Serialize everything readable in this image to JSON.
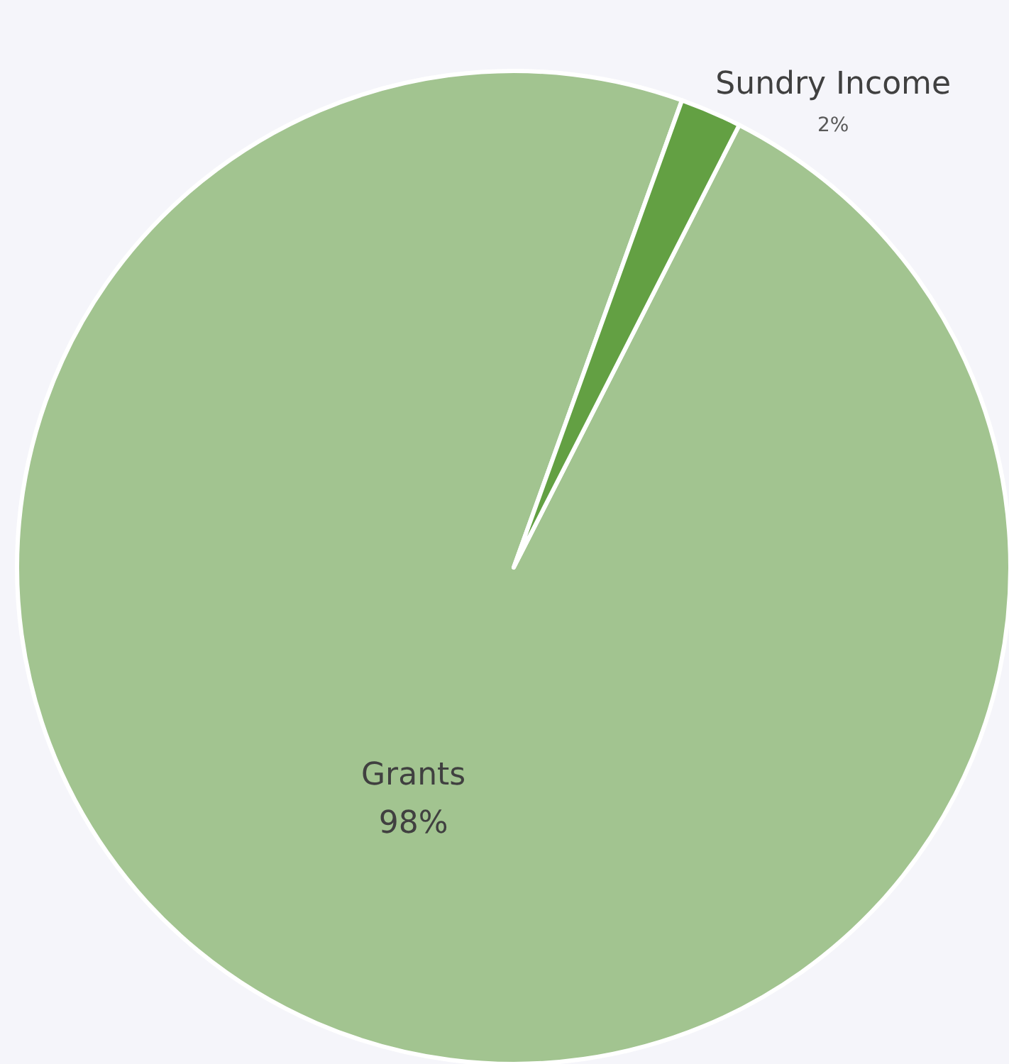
{
  "chart_data": {
    "type": "pie",
    "categories": [
      "Grants",
      "Sundry Income"
    ],
    "values": [
      98,
      2
    ],
    "colors": [
      "#a2c490",
      "#63a043"
    ],
    "value_labels": [
      "98%",
      "2%"
    ],
    "legend": false
  }
}
